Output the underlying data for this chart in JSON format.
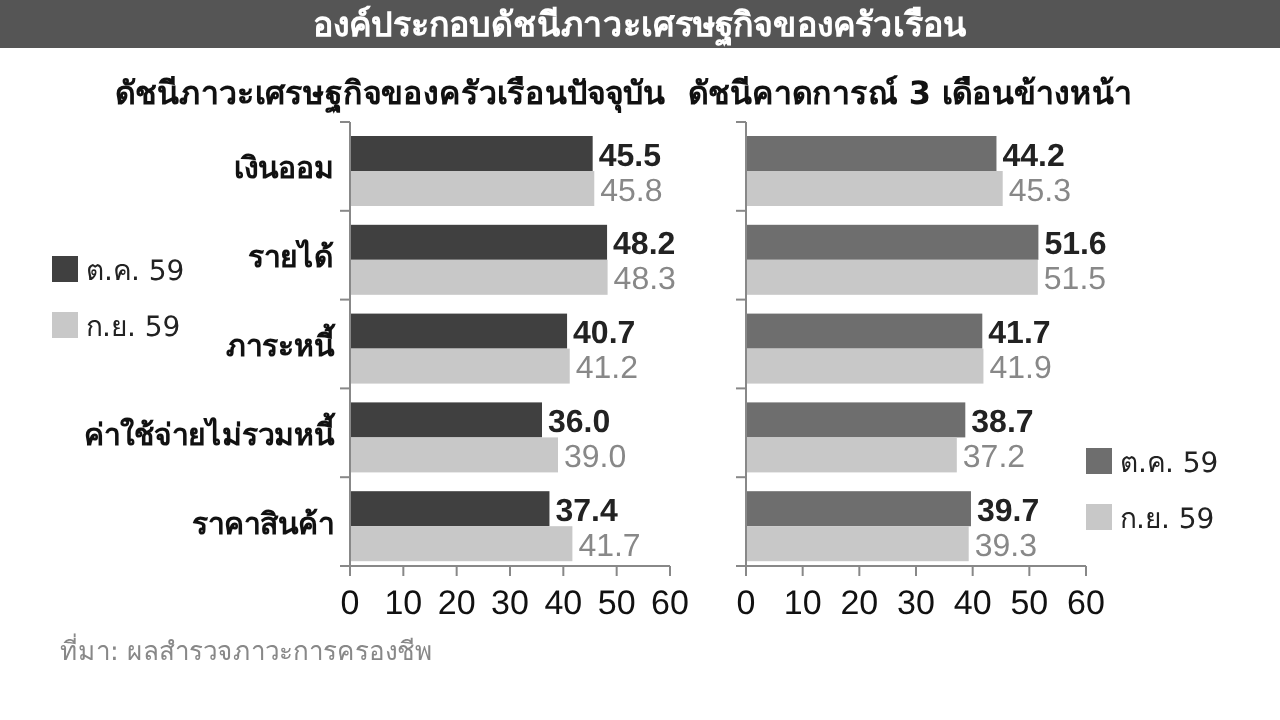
{
  "chart_data": [
    {
      "type": "bar",
      "orientation": "horizontal",
      "title": "ดัชนีภาวะเศรษฐกิจของครัวเรือนปัจจุบัน",
      "annotations": [
        "องค์ประกอบดัชนีภาวะเศรษฐกิจของครัวเรือน",
        "ที่มา: ผลสำรวจภาวะการครองชีพ"
      ],
      "categories": [
        "เงินออม",
        "รายได้",
        "ภาระหนี้",
        "ค่าใช้จ่ายไม่รวมหนี้",
        "ราคาสินค้า"
      ],
      "series": [
        {
          "name": "ต.ค. 59",
          "color": "#404040",
          "values": [
            45.5,
            48.2,
            40.7,
            36.0,
            37.4
          ]
        },
        {
          "name": "ก.ย. 59",
          "color": "#c8c8c8",
          "values": [
            45.8,
            48.3,
            41.2,
            39.0,
            41.7
          ]
        }
      ],
      "value_labels": [
        [
          "45.5",
          "48.2",
          "40.7",
          "36.0",
          "37.4"
        ],
        [
          "45.8",
          "48.3",
          "41.2",
          "39.0",
          "41.7"
        ]
      ],
      "xlim": [
        0,
        60
      ],
      "xticks": [
        0,
        10,
        20,
        30,
        40,
        50,
        60
      ],
      "legend": "left",
      "grid": false
    },
    {
      "type": "bar",
      "orientation": "horizontal",
      "title": "ดัชนีคาดการณ์ 3 เดือนข้างหน้า",
      "categories": [
        null,
        null,
        null,
        null,
        null
      ],
      "series": [
        {
          "name": "ต.ค. 59",
          "color": "#6e6e6e",
          "values": [
            44.2,
            51.6,
            41.7,
            38.7,
            39.7
          ]
        },
        {
          "name": "ก.ย. 59",
          "color": "#c8c8c8",
          "values": [
            45.3,
            51.5,
            41.9,
            37.2,
            39.3
          ]
        }
      ],
      "value_labels": [
        [
          "44.2",
          "51.6",
          "41.7",
          "38.7",
          "39.7"
        ],
        [
          "45.3",
          "51.5",
          "41.9",
          "37.2",
          "39.3"
        ]
      ],
      "xlim": [
        0,
        60
      ],
      "xticks": [
        0,
        10,
        20,
        30,
        40,
        50,
        60
      ],
      "tick_labels": "x",
      "legend": "bottom right",
      "grid": false
    }
  ]
}
